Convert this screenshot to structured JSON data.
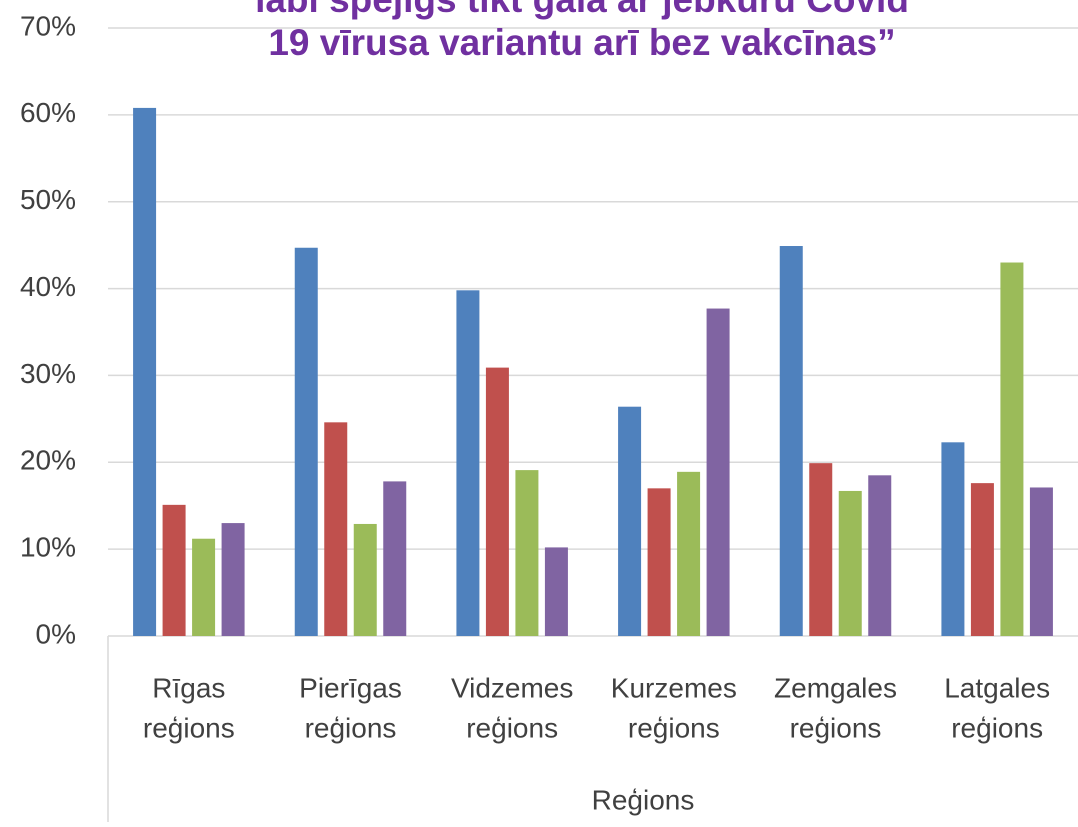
{
  "chart_data": {
    "type": "bar",
    "title_lines": [
      "labi spējīgs tikt galā ar jebkuru Covid",
      "19 vīrusa variantu arī bez vakcīnas”"
    ],
    "x_label": "Reģions",
    "categories": [
      [
        "Rīgas",
        "reģions"
      ],
      [
        "Pierīgas",
        "reģions"
      ],
      [
        "Vidzemes",
        "reģions"
      ],
      [
        "Kurzemes",
        "reģions"
      ],
      [
        "Zemgales",
        "reģions"
      ],
      [
        "Latgales",
        "reģions"
      ]
    ],
    "series": [
      {
        "color": "#4f81bd",
        "values": [
          60.8,
          44.7,
          39.8,
          26.4,
          44.9,
          22.3
        ]
      },
      {
        "color": "#c0504d",
        "values": [
          15.1,
          24.6,
          30.9,
          17.0,
          19.9,
          17.6
        ]
      },
      {
        "color": "#9bbb59",
        "values": [
          11.2,
          12.9,
          19.1,
          18.9,
          16.7,
          43.0
        ]
      },
      {
        "color": "#8064a2",
        "values": [
          13.0,
          17.8,
          10.2,
          37.7,
          18.5,
          17.1
        ]
      }
    ],
    "ylim": [
      0,
      70
    ],
    "yticks": [
      {
        "value": 0,
        "label": "0%"
      },
      {
        "value": 10,
        "label": "10%"
      },
      {
        "value": 20,
        "label": "20%"
      },
      {
        "value": 30,
        "label": "30%"
      },
      {
        "value": 40,
        "label": "40%"
      },
      {
        "value": 50,
        "label": "50%"
      },
      {
        "value": 60,
        "label": "60%"
      },
      {
        "value": 70,
        "label": "70%"
      }
    ],
    "grid": true
  }
}
